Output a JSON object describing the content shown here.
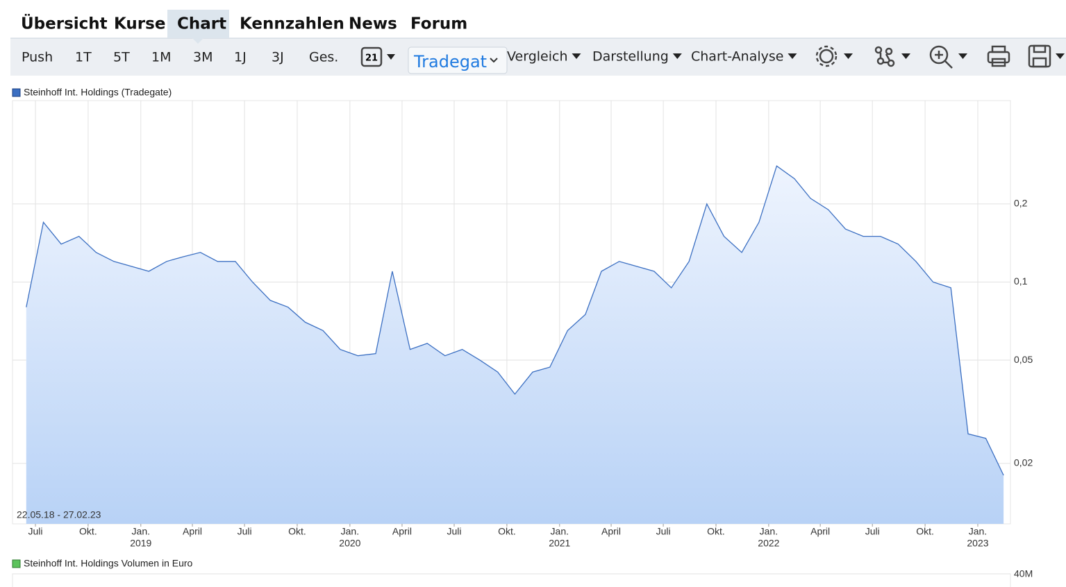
{
  "nav": {
    "tabs": [
      "Übersicht",
      "Kurse",
      "Chart",
      "Kennzahlen",
      "News",
      "Forum"
    ],
    "active_tab": 2
  },
  "toolbar": {
    "periods": [
      "Push",
      "1T",
      "5T",
      "1M",
      "3M",
      "1J",
      "3J",
      "Ges."
    ],
    "calendar_day": "21",
    "exchange": "Tradegat",
    "menus": [
      "Vergleich",
      "Darstellung",
      "Chart-Analyse"
    ]
  },
  "chart_data": [
    {
      "type": "area",
      "log_scale": true,
      "grid": true,
      "range_label": "22.05.18 - 27.02.23",
      "xlim": [
        "2018-05-22",
        "2023-02-27"
      ],
      "x": [
        "2018-06",
        "2018-07",
        "2018-08",
        "2018-09",
        "2018-10",
        "2018-11",
        "2018-12",
        "2019-01",
        "2019-02",
        "2019-03",
        "2019-04",
        "2019-05",
        "2019-06",
        "2019-07",
        "2019-08",
        "2019-09",
        "2019-10",
        "2019-11",
        "2019-12",
        "2020-01",
        "2020-02",
        "2020-03",
        "2020-04",
        "2020-05",
        "2020-06",
        "2020-07",
        "2020-08",
        "2020-09",
        "2020-10",
        "2020-11",
        "2020-12",
        "2021-01",
        "2021-02",
        "2021-03",
        "2021-04",
        "2021-05",
        "2021-06",
        "2021-07",
        "2021-08",
        "2021-09",
        "2021-10",
        "2021-11",
        "2021-12",
        "2022-01",
        "2022-02",
        "2022-03",
        "2022-04",
        "2022-05",
        "2022-06",
        "2022-07",
        "2022-08",
        "2022-09",
        "2022-10",
        "2022-11",
        "2022-12",
        "2023-01",
        "2023-02"
      ],
      "series": [
        {
          "name": "Steinhoff Int. Holdings (Tradegate)",
          "color": "#3b6fc2",
          "values": [
            0.08,
            0.17,
            0.14,
            0.15,
            0.13,
            0.12,
            0.115,
            0.11,
            0.12,
            0.125,
            0.13,
            0.12,
            0.12,
            0.1,
            0.085,
            0.08,
            0.07,
            0.065,
            0.055,
            0.052,
            0.053,
            0.11,
            0.055,
            0.058,
            0.052,
            0.055,
            0.05,
            0.045,
            0.037,
            0.045,
            0.047,
            0.065,
            0.075,
            0.11,
            0.12,
            0.115,
            0.11,
            0.095,
            0.12,
            0.2,
            0.15,
            0.13,
            0.17,
            0.28,
            0.25,
            0.21,
            0.19,
            0.16,
            0.15,
            0.15,
            0.14,
            0.12,
            0.1,
            0.095,
            0.026,
            0.025,
            0.018
          ]
        }
      ],
      "ylim": [
        0.0117,
        0.5
      ],
      "yticks": [
        {
          "value": 0.02,
          "label": "0,02"
        },
        {
          "value": 0.05,
          "label": "0,05"
        },
        {
          "value": 0.1,
          "label": "0,1"
        },
        {
          "value": 0.2,
          "label": "0,2"
        }
      ],
      "xticks": [
        {
          "value": "2018-07",
          "label": "Juli"
        },
        {
          "value": "2018-10",
          "label": "Okt."
        },
        {
          "value": "2019-01",
          "label": "Jan."
        },
        {
          "value": "2019-04",
          "label": "April"
        },
        {
          "value": "2019-07",
          "label": "Juli"
        },
        {
          "value": "2019-10",
          "label": "Okt."
        },
        {
          "value": "2020-01",
          "label": "Jan."
        },
        {
          "value": "2020-04",
          "label": "April"
        },
        {
          "value": "2020-07",
          "label": "Juli"
        },
        {
          "value": "2020-10",
          "label": "Okt."
        },
        {
          "value": "2021-01",
          "label": "Jan."
        },
        {
          "value": "2021-04",
          "label": "April"
        },
        {
          "value": "2021-07",
          "label": "Juli"
        },
        {
          "value": "2021-10",
          "label": "Okt."
        },
        {
          "value": "2022-01",
          "label": "Jan."
        },
        {
          "value": "2022-04",
          "label": "April"
        },
        {
          "value": "2022-07",
          "label": "Juli"
        },
        {
          "value": "2022-10",
          "label": "Okt."
        },
        {
          "value": "2023-01",
          "label": "Jan."
        }
      ],
      "year_labels": [
        {
          "value": "2019-01",
          "label": "2019"
        },
        {
          "value": "2020-01",
          "label": "2020"
        },
        {
          "value": "2021-01",
          "label": "2021"
        },
        {
          "value": "2022-01",
          "label": "2022"
        },
        {
          "value": "2023-01",
          "label": "2023"
        }
      ]
    },
    {
      "type": "bar",
      "series": [
        {
          "name": "Steinhoff Int. Holdings Volumen in Euro",
          "color": "#5cc35c"
        }
      ],
      "yticks": [
        {
          "value": 40000000,
          "label": "40M"
        }
      ]
    }
  ]
}
